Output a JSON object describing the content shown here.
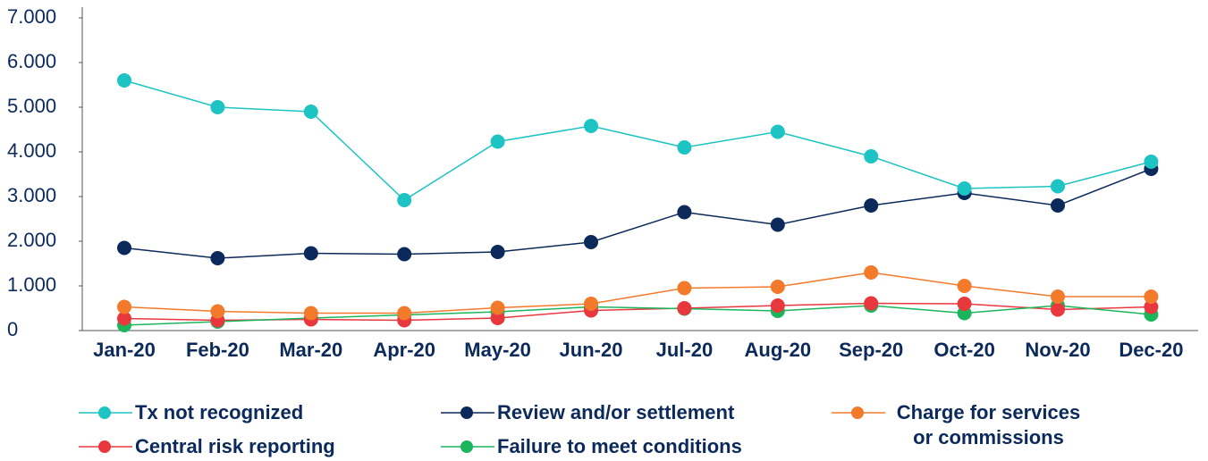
{
  "chart_data": {
    "type": "line",
    "categories": [
      "Jan-20",
      "Feb-20",
      "Mar-20",
      "Apr-20",
      "May-20",
      "Jun-20",
      "Jul-20",
      "Aug-20",
      "Sep-20",
      "Oct-20",
      "Nov-20",
      "Dec-20"
    ],
    "ylim": [
      0,
      7000
    ],
    "yticks": [
      0,
      {
        "value": 1000,
        "label": "1.000"
      },
      {
        "value": 2000,
        "label": "2.000"
      },
      {
        "value": 3000,
        "label": "3.000"
      },
      {
        "value": 4000,
        "label": "4.000"
      },
      {
        "value": 5000,
        "label": "5.000"
      },
      {
        "value": 6000,
        "label": "6.000"
      },
      {
        "value": 7000,
        "label": "7.000"
      }
    ],
    "grid": false,
    "legend": "bottom",
    "series": [
      {
        "name": "Tx not recognized",
        "color": "#1ec3c3",
        "values": [
          5600,
          5000,
          4900,
          2920,
          4230,
          4580,
          4100,
          4450,
          3900,
          3180,
          3230,
          3780
        ]
      },
      {
        "name": "Review and/or settlement",
        "color": "#0b2a5b",
        "values": [
          1850,
          1620,
          1730,
          1710,
          1760,
          1980,
          2650,
          2370,
          2800,
          3080,
          2800,
          3620
        ]
      },
      {
        "name": "Charge for services or commissions",
        "color": "#f37a2a",
        "values": [
          530,
          430,
          390,
          390,
          510,
          600,
          950,
          980,
          1300,
          1000,
          760,
          760
        ]
      },
      {
        "name": "Central risk reporting",
        "color": "#e8383d",
        "values": [
          270,
          230,
          250,
          230,
          280,
          450,
          500,
          560,
          610,
          600,
          470,
          530
        ]
      },
      {
        "name": "Failure to meet conditions",
        "color": "#1bb55c",
        "values": [
          120,
          200,
          280,
          350,
          420,
          530,
          490,
          440,
          560,
          390,
          560,
          360
        ]
      }
    ]
  }
}
